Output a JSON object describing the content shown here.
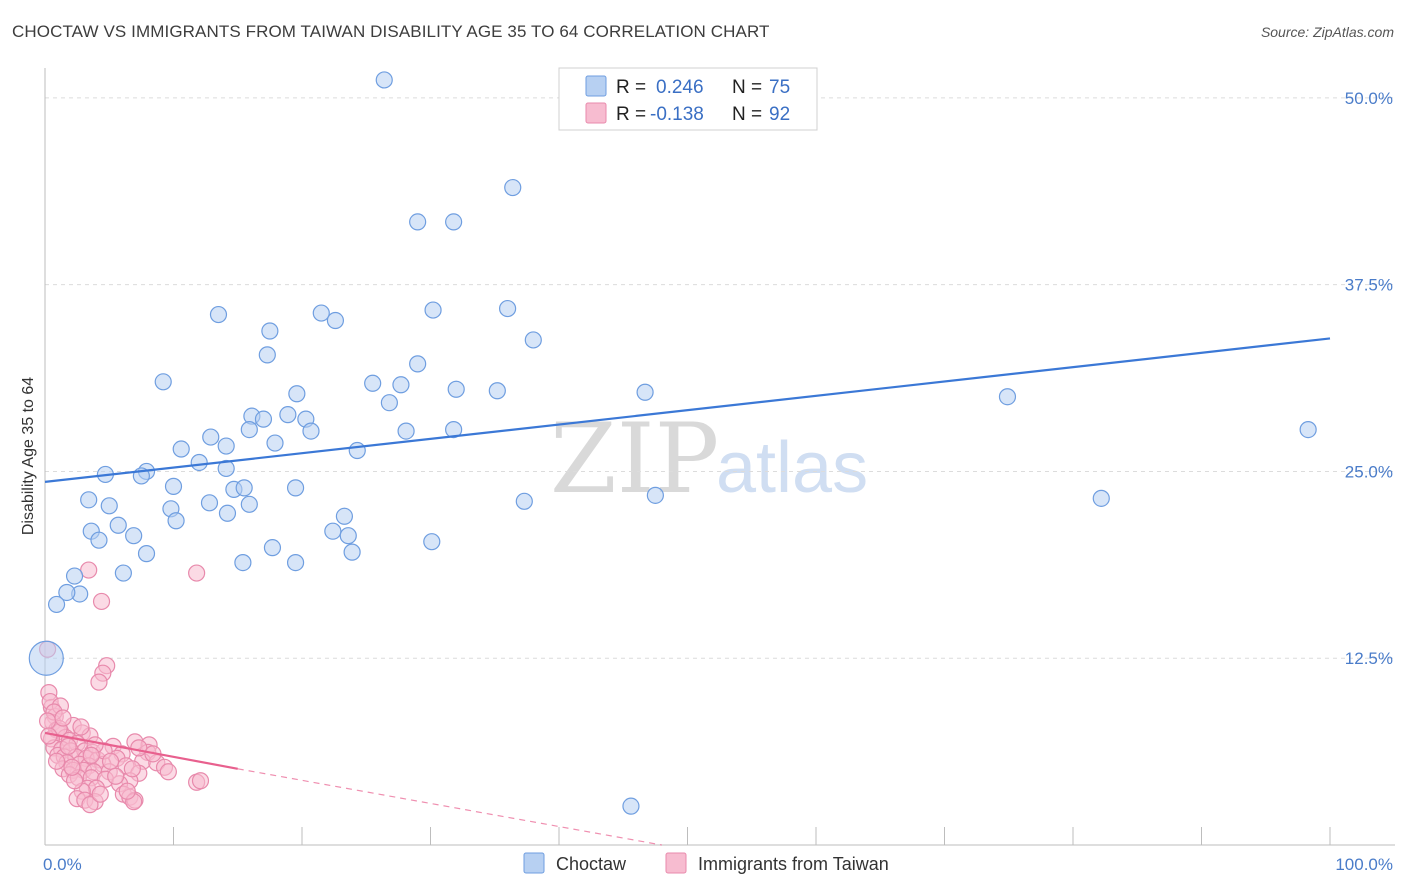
{
  "title": "CHOCTAW VS IMMIGRANTS FROM TAIWAN DISABILITY AGE 35 TO 64 CORRELATION CHART",
  "source": "Source: ZipAtlas.com",
  "watermark": {
    "zip": "ZIP",
    "atlas": "atlas"
  },
  "colors": {
    "blue": "#3b78d6",
    "blue_fill": "#b7d0f2",
    "pink": "#e8608e",
    "pink_fill": "#f7bcd0",
    "axis_text": "#4a7cc9"
  },
  "legend": {
    "r_label": "R =",
    "n_label": "N =",
    "items": [
      {
        "name": "Choctaw",
        "r": "0.246",
        "n": "75"
      },
      {
        "name": "Immigrants from Taiwan",
        "r": "-0.138",
        "n": "92"
      }
    ]
  },
  "chart_data": {
    "type": "scatter",
    "title": "CHOCTAW VS IMMIGRANTS FROM TAIWAN DISABILITY AGE 35 TO 64 CORRELATION CHART",
    "xlabel": "",
    "ylabel": "Disability Age 35 to 64",
    "xlim": [
      0,
      100
    ],
    "ylim": [
      0,
      52
    ],
    "x_tick_labels": [
      "0.0%",
      "100.0%"
    ],
    "y_ticks": [
      12.5,
      25.0,
      37.5,
      50.0
    ],
    "y_tick_labels": [
      "12.5%",
      "25.0%",
      "37.5%",
      "50.0%"
    ],
    "grid": true,
    "legend_position": "top-center",
    "series": [
      {
        "name": "Choctaw",
        "r": 0.246,
        "n": 75,
        "trend": {
          "x": [
            0,
            100
          ],
          "y": [
            24.3,
            33.9
          ]
        },
        "points": [
          [
            26.4,
            51.2
          ],
          [
            36.4,
            44.0
          ],
          [
            29.0,
            41.7
          ],
          [
            31.8,
            41.7
          ],
          [
            13.5,
            35.5
          ],
          [
            17.5,
            34.4
          ],
          [
            21.5,
            35.6
          ],
          [
            22.6,
            35.1
          ],
          [
            30.2,
            35.8
          ],
          [
            36.0,
            35.9
          ],
          [
            38.0,
            33.8
          ],
          [
            17.3,
            32.8
          ],
          [
            29.0,
            32.2
          ],
          [
            9.2,
            31.0
          ],
          [
            25.5,
            30.9
          ],
          [
            27.7,
            30.8
          ],
          [
            32.0,
            30.5
          ],
          [
            35.2,
            30.4
          ],
          [
            46.7,
            30.3
          ],
          [
            19.6,
            30.2
          ],
          [
            26.8,
            29.6
          ],
          [
            74.9,
            30.0
          ],
          [
            98.3,
            27.8
          ],
          [
            16.1,
            28.7
          ],
          [
            17.0,
            28.5
          ],
          [
            18.9,
            28.8
          ],
          [
            20.3,
            28.5
          ],
          [
            15.9,
            27.8
          ],
          [
            20.7,
            27.7
          ],
          [
            28.1,
            27.7
          ],
          [
            31.8,
            27.8
          ],
          [
            17.9,
            26.9
          ],
          [
            12.9,
            27.3
          ],
          [
            14.1,
            26.7
          ],
          [
            10.6,
            26.5
          ],
          [
            24.3,
            26.4
          ],
          [
            12.0,
            25.6
          ],
          [
            14.1,
            25.2
          ],
          [
            7.9,
            25.0
          ],
          [
            4.7,
            24.8
          ],
          [
            7.5,
            24.7
          ],
          [
            10.0,
            24.0
          ],
          [
            14.7,
            23.8
          ],
          [
            15.5,
            23.9
          ],
          [
            9.8,
            22.5
          ],
          [
            12.8,
            22.9
          ],
          [
            3.4,
            23.1
          ],
          [
            5.0,
            22.7
          ],
          [
            10.2,
            21.7
          ],
          [
            15.9,
            22.8
          ],
          [
            19.5,
            23.9
          ],
          [
            14.2,
            22.2
          ],
          [
            23.3,
            22.0
          ],
          [
            37.3,
            23.0
          ],
          [
            47.5,
            23.4
          ],
          [
            82.2,
            23.2
          ],
          [
            5.7,
            21.4
          ],
          [
            3.6,
            21.0
          ],
          [
            4.2,
            20.4
          ],
          [
            6.9,
            20.7
          ],
          [
            22.4,
            21.0
          ],
          [
            23.6,
            20.7
          ],
          [
            17.7,
            19.9
          ],
          [
            7.9,
            19.5
          ],
          [
            23.9,
            19.6
          ],
          [
            30.1,
            20.3
          ],
          [
            15.4,
            18.9
          ],
          [
            19.5,
            18.9
          ],
          [
            6.1,
            18.2
          ],
          [
            2.3,
            18.0
          ],
          [
            2.7,
            16.8
          ],
          [
            1.7,
            16.9
          ],
          [
            0.9,
            16.1
          ],
          [
            0.1,
            12.5
          ],
          [
            45.6,
            2.6
          ]
        ]
      },
      {
        "name": "Immigrants from Taiwan",
        "r": -0.138,
        "n": 92,
        "trend": {
          "x": [
            0,
            15
          ],
          "y": [
            7.5,
            5.1
          ]
        },
        "trend_dashed": {
          "x": [
            15,
            48
          ],
          "y": [
            5.1,
            0
          ]
        },
        "points": [
          [
            11.8,
            18.2
          ],
          [
            3.4,
            18.4
          ],
          [
            4.4,
            16.3
          ],
          [
            0.2,
            13.1
          ],
          [
            4.8,
            12.0
          ],
          [
            4.5,
            11.5
          ],
          [
            4.2,
            10.9
          ],
          [
            0.3,
            10.2
          ],
          [
            0.5,
            9.2
          ],
          [
            0.8,
            8.6
          ],
          [
            0.6,
            8.2
          ],
          [
            2.2,
            8.0
          ],
          [
            0.9,
            7.7
          ],
          [
            1.2,
            7.6
          ],
          [
            2.9,
            7.5
          ],
          [
            3.5,
            7.3
          ],
          [
            1.6,
            7.2
          ],
          [
            0.5,
            7.1
          ],
          [
            1.9,
            7.0
          ],
          [
            2.5,
            6.8
          ],
          [
            7.0,
            6.9
          ],
          [
            8.1,
            6.7
          ],
          [
            5.3,
            6.6
          ],
          [
            0.7,
            6.5
          ],
          [
            1.3,
            6.4
          ],
          [
            2.0,
            6.3
          ],
          [
            3.1,
            6.3
          ],
          [
            3.7,
            6.2
          ],
          [
            6.0,
            6.1
          ],
          [
            8.0,
            6.2
          ],
          [
            1.0,
            6.0
          ],
          [
            1.5,
            5.9
          ],
          [
            2.4,
            5.9
          ],
          [
            3.2,
            5.8
          ],
          [
            4.1,
            5.7
          ],
          [
            5.6,
            5.8
          ],
          [
            7.6,
            5.6
          ],
          [
            8.7,
            5.5
          ],
          [
            1.7,
            5.5
          ],
          [
            2.7,
            5.4
          ],
          [
            3.4,
            5.3
          ],
          [
            4.5,
            5.4
          ],
          [
            6.3,
            5.3
          ],
          [
            9.3,
            5.2
          ],
          [
            1.4,
            5.1
          ],
          [
            2.2,
            5.0
          ],
          [
            3.0,
            5.0
          ],
          [
            3.8,
            4.9
          ],
          [
            5.0,
            4.9
          ],
          [
            7.3,
            4.8
          ],
          [
            9.6,
            4.9
          ],
          [
            1.9,
            4.7
          ],
          [
            2.6,
            4.5
          ],
          [
            3.6,
            4.5
          ],
          [
            4.7,
            4.4
          ],
          [
            6.6,
            4.3
          ],
          [
            5.8,
            4.1
          ],
          [
            3.3,
            3.8
          ],
          [
            4.0,
            3.8
          ],
          [
            2.9,
            3.6
          ],
          [
            11.8,
            4.2
          ],
          [
            12.1,
            4.3
          ],
          [
            6.1,
            3.4
          ],
          [
            2.5,
            3.1
          ],
          [
            3.1,
            3.0
          ],
          [
            3.9,
            2.9
          ],
          [
            6.6,
            3.2
          ],
          [
            7.0,
            3.0
          ],
          [
            3.5,
            2.7
          ],
          [
            6.9,
            2.9
          ],
          [
            1.1,
            7.8
          ],
          [
            0.4,
            9.6
          ],
          [
            1.2,
            9.3
          ],
          [
            0.7,
            8.9
          ],
          [
            0.2,
            8.3
          ],
          [
            2.8,
            7.9
          ],
          [
            1.8,
            6.6
          ],
          [
            4.6,
            6.3
          ],
          [
            3.9,
            6.7
          ],
          [
            7.3,
            6.5
          ],
          [
            8.4,
            6.1
          ],
          [
            5.1,
            5.6
          ],
          [
            6.8,
            5.1
          ],
          [
            2.3,
            4.3
          ],
          [
            4.3,
            3.4
          ],
          [
            6.4,
            3.6
          ],
          [
            0.9,
            5.6
          ],
          [
            1.4,
            8.5
          ],
          [
            0.3,
            7.3
          ],
          [
            2.1,
            5.2
          ],
          [
            3.6,
            6.0
          ],
          [
            5.5,
            4.6
          ]
        ]
      }
    ]
  }
}
